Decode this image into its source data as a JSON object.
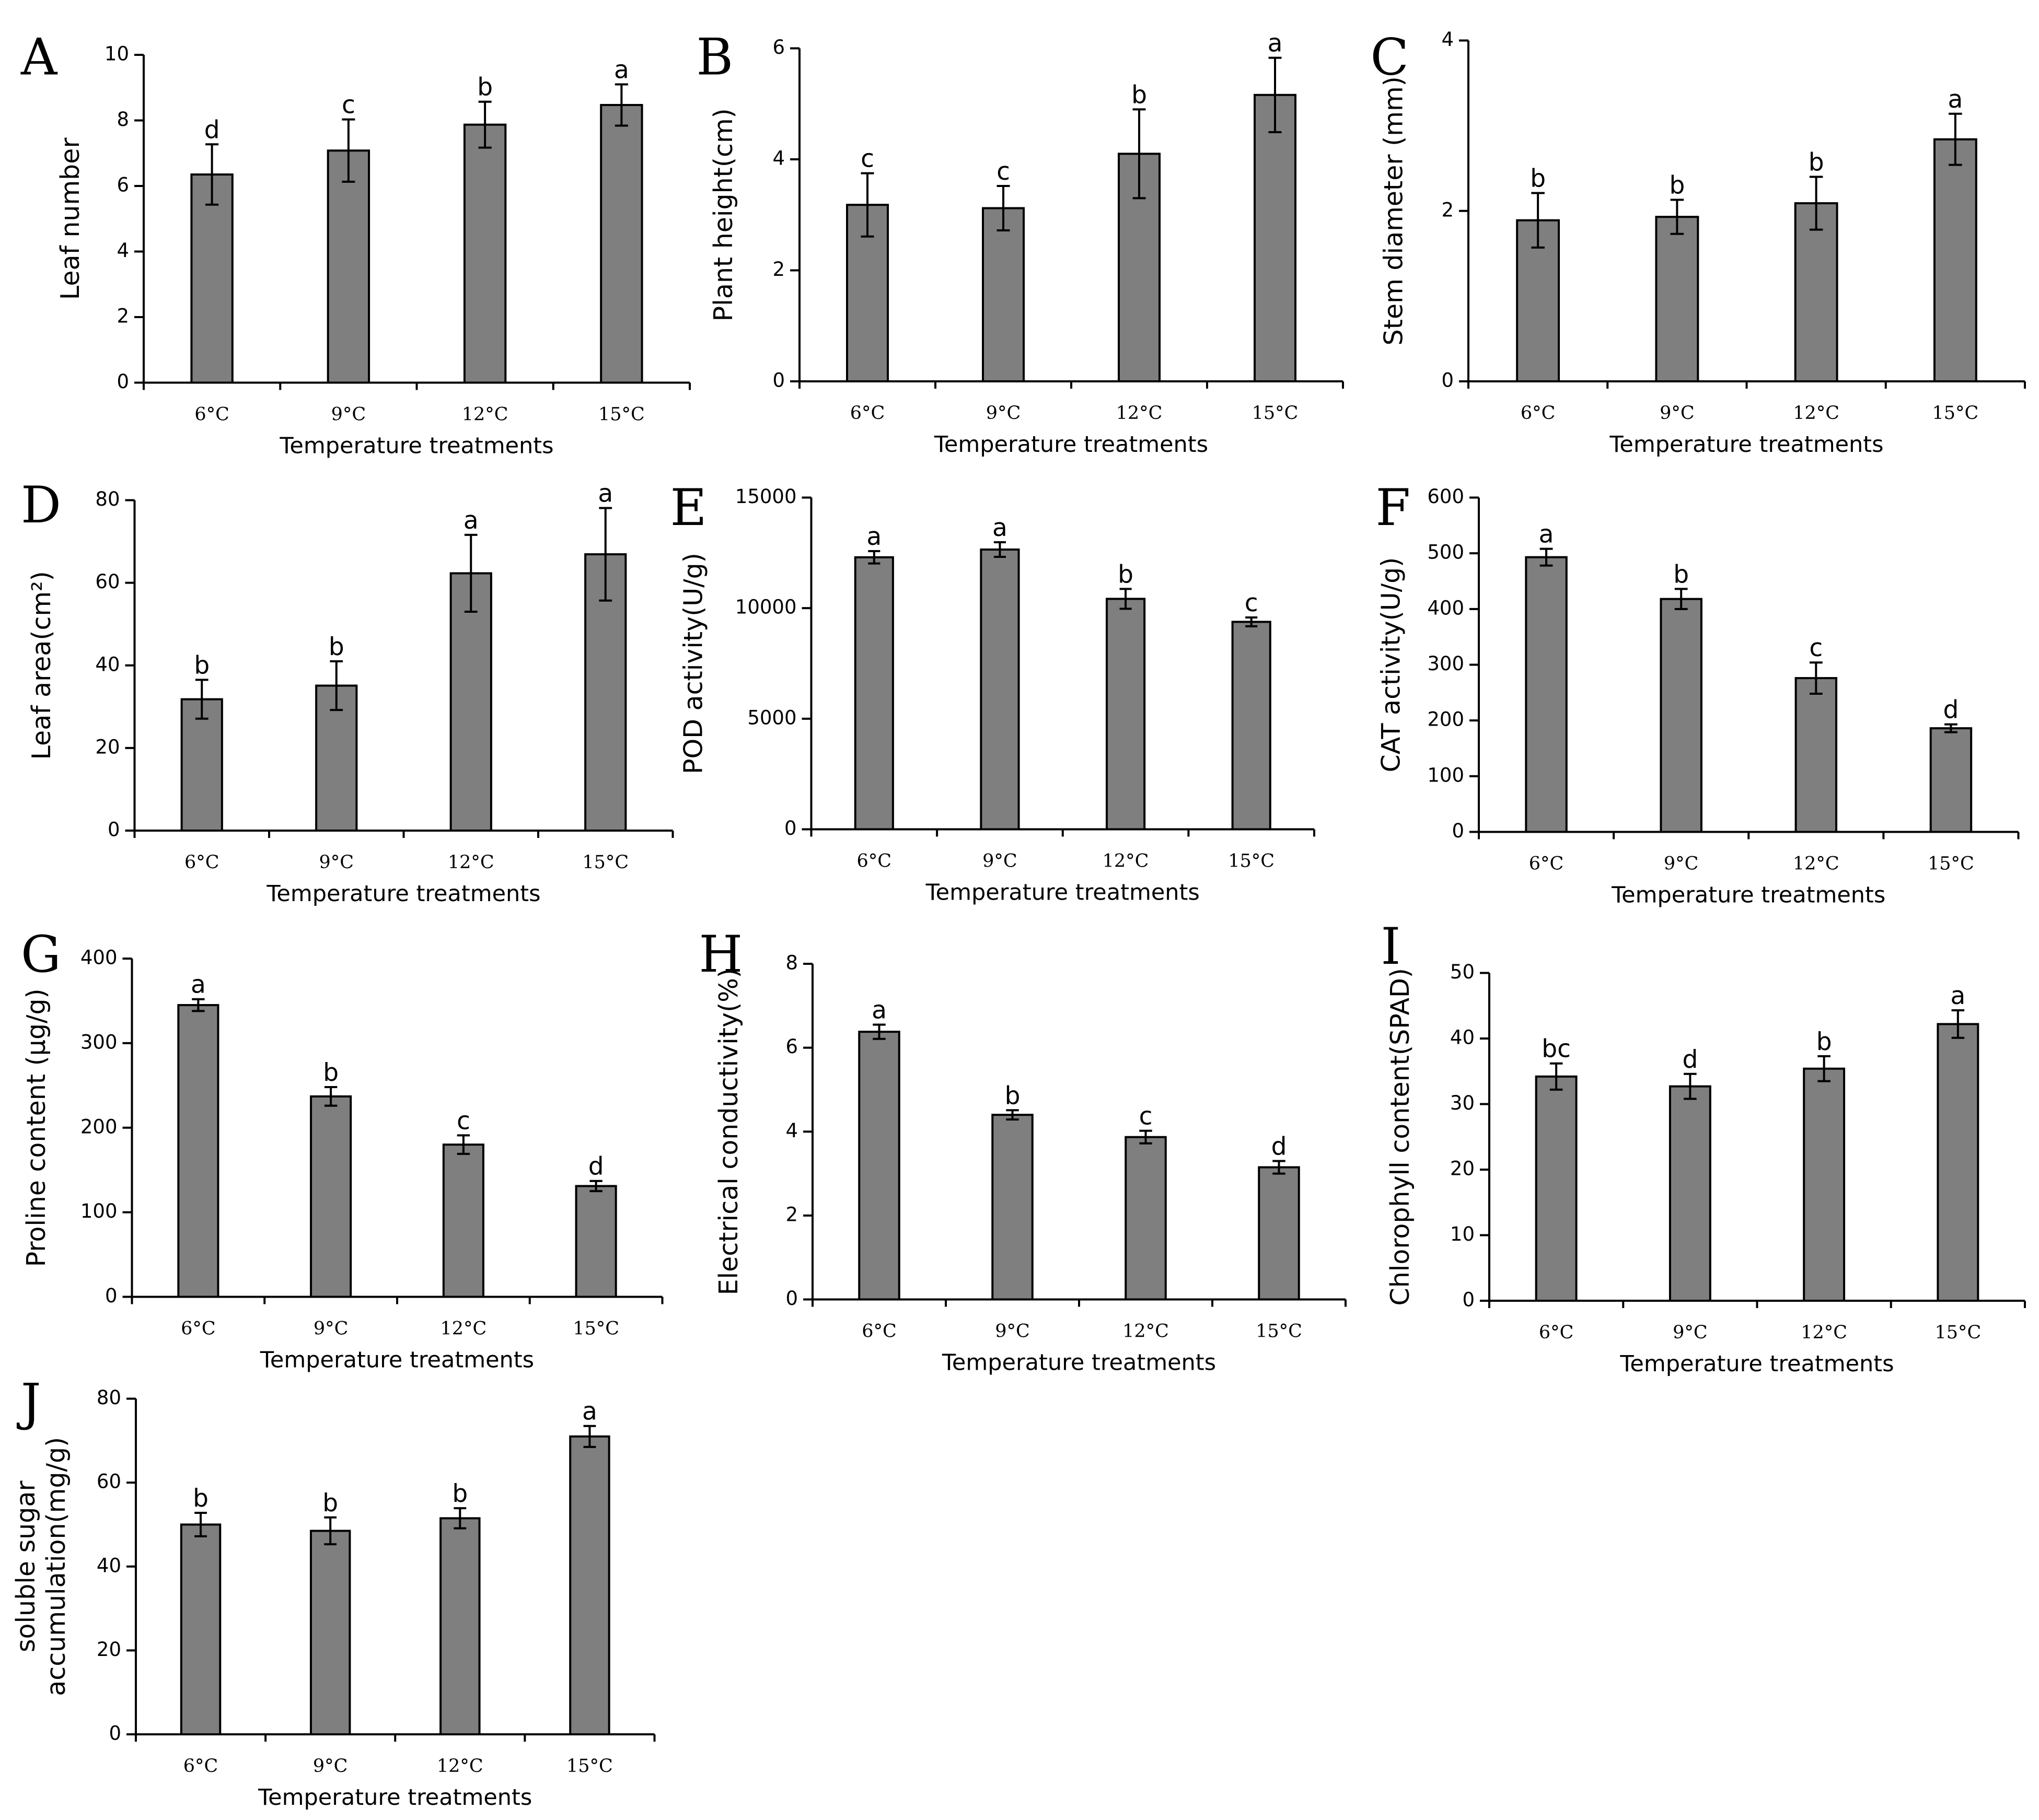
{
  "colors": {
    "bar_fill": "#7f7f7f",
    "stroke": "#000000",
    "background": "#ffffff"
  },
  "chart_data": [
    {
      "panel": "A",
      "type": "bar",
      "xlabel": "Temperature treatments",
      "ylabel": "Leaf number",
      "categories": [
        "6°C",
        "9°C",
        "12°C",
        "15°C"
      ],
      "values": [
        6.35,
        7.08,
        7.87,
        8.47
      ],
      "errors": [
        0.92,
        0.95,
        0.7,
        0.63
      ],
      "significance": [
        "d",
        "c",
        "b",
        "a"
      ],
      "ylim": [
        0,
        10
      ],
      "yticks": [
        0,
        2,
        4,
        6,
        8,
        10
      ]
    },
    {
      "panel": "B",
      "type": "bar",
      "xlabel": "Temperature treatments",
      "ylabel": "Plant height(cm)",
      "categories": [
        "6°C",
        "9°C",
        "12°C",
        "15°C"
      ],
      "values": [
        3.18,
        3.12,
        4.1,
        5.16
      ],
      "errors": [
        0.57,
        0.4,
        0.8,
        0.67
      ],
      "significance": [
        "c",
        "c",
        "b",
        "a"
      ],
      "ylim": [
        0,
        6
      ],
      "yticks": [
        0,
        2,
        4,
        6
      ]
    },
    {
      "panel": "C",
      "type": "bar",
      "xlabel": "Temperature treatments",
      "ylabel": "Stem diameter (mm)",
      "categories": [
        "6°C",
        "9°C",
        "12°C",
        "15°C"
      ],
      "values": [
        1.89,
        1.93,
        2.09,
        2.84
      ],
      "errors": [
        0.32,
        0.2,
        0.31,
        0.3
      ],
      "significance": [
        "b",
        "b",
        "b",
        "a"
      ],
      "ylim": [
        0,
        4
      ],
      "yticks": [
        0,
        2,
        4
      ]
    },
    {
      "panel": "D",
      "type": "bar",
      "xlabel": "Temperature treatments",
      "ylabel": "Leaf area(cm²)",
      "categories": [
        "6°C",
        "9°C",
        "12°C",
        "15°C"
      ],
      "values": [
        31.8,
        35.1,
        62.3,
        66.9
      ],
      "errors": [
        4.7,
        5.9,
        9.3,
        11.2
      ],
      "significance": [
        "b",
        "b",
        "a",
        "a"
      ],
      "ylim": [
        0,
        80
      ],
      "yticks": [
        0,
        20,
        40,
        60,
        80
      ]
    },
    {
      "panel": "E",
      "type": "bar",
      "xlabel": "Temperature treatments",
      "ylabel": "POD activity(U/g)",
      "categories": [
        "6°C",
        "9°C",
        "12°C",
        "15°C"
      ],
      "values": [
        12300,
        12650,
        10420,
        9380
      ],
      "errors": [
        280,
        330,
        450,
        200
      ],
      "significance": [
        "a",
        "a",
        "b",
        "c"
      ],
      "ylim": [
        0,
        15000
      ],
      "yticks": [
        0,
        5000,
        10000,
        15000
      ]
    },
    {
      "panel": "F",
      "type": "bar",
      "xlabel": "Temperature treatments",
      "ylabel": "CAT activity(U/g)",
      "categories": [
        "6°C",
        "9°C",
        "12°C",
        "15°C"
      ],
      "values": [
        493,
        418,
        276,
        186
      ],
      "errors": [
        15,
        18,
        28,
        7
      ],
      "significance": [
        "a",
        "b",
        "c",
        "d"
      ],
      "ylim": [
        0,
        600
      ],
      "yticks": [
        0,
        100,
        200,
        300,
        400,
        500,
        600
      ]
    },
    {
      "panel": "G",
      "type": "bar",
      "xlabel": "Temperature treatments",
      "ylabel": "Proline content (μg/g)",
      "categories": [
        "6°C",
        "9°C",
        "12°C",
        "15°C"
      ],
      "values": [
        345,
        237,
        180,
        131
      ],
      "errors": [
        7,
        11,
        11,
        6
      ],
      "significance": [
        "a",
        "b",
        "c",
        "d"
      ],
      "ylim": [
        0,
        400
      ],
      "yticks": [
        0,
        100,
        200,
        300,
        400
      ]
    },
    {
      "panel": "H",
      "type": "bar",
      "xlabel": "Temperature treatments",
      "ylabel": "Electrical conductivity(%)",
      "categories": [
        "6°C",
        "9°C",
        "12°C",
        "15°C"
      ],
      "values": [
        6.38,
        4.4,
        3.87,
        3.15
      ],
      "errors": [
        0.17,
        0.11,
        0.15,
        0.15
      ],
      "significance": [
        "a",
        "b",
        "c",
        "d"
      ],
      "ylim": [
        0,
        8
      ],
      "yticks": [
        0,
        2,
        4,
        6,
        8
      ]
    },
    {
      "panel": "I",
      "type": "bar",
      "xlabel": "Temperature treatments",
      "ylabel": "Chlorophyll content(SPAD)",
      "categories": [
        "6°C",
        "9°C",
        "12°C",
        "15°C"
      ],
      "values": [
        34.2,
        32.7,
        35.4,
        42.2
      ],
      "errors": [
        2.0,
        1.9,
        1.9,
        2.1
      ],
      "significance": [
        "bc",
        "d",
        "b",
        "a"
      ],
      "ylim": [
        0,
        50
      ],
      "yticks": [
        0,
        10,
        20,
        30,
        40,
        50
      ]
    },
    {
      "panel": "J",
      "type": "bar",
      "xlabel": "Temperature treatments",
      "ylabel": [
        "soluble sugar",
        "accumulation(mg/g)"
      ],
      "categories": [
        "6°C",
        "9°C",
        "12°C",
        "15°C"
      ],
      "values": [
        50.0,
        48.5,
        51.5,
        71.0
      ],
      "errors": [
        2.8,
        3.2,
        2.4,
        2.5
      ],
      "significance": [
        "b",
        "b",
        "b",
        "a"
      ],
      "ylim": [
        0,
        80
      ],
      "yticks": [
        0,
        20,
        40,
        60,
        80
      ]
    }
  ]
}
